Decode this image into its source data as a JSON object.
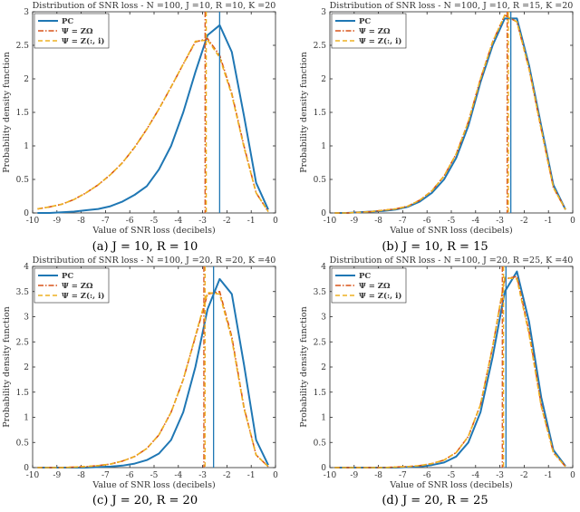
{
  "colors": {
    "pc": "#1f77b4",
    "zomega": "#d95319",
    "zcol": "#edb120"
  },
  "chart_data": [
    {
      "type": "line",
      "title": "Distribution of SNR loss - N =100, J =10, R =10, K =20",
      "caption": "(a) J = 10, R = 10",
      "xlabel": "Value of SNR loss (decibels)",
      "ylabel": "Probability density function",
      "xlim": [
        -10,
        0
      ],
      "ylim": [
        0,
        3
      ],
      "xticks": [
        "-10",
        "-9",
        "-8",
        "-7",
        "-6",
        "-5",
        "-4",
        "-3",
        "-2",
        "-1",
        "0"
      ],
      "yticks": [
        "0",
        "0.5",
        "1",
        "1.5",
        "2",
        "2.5",
        "3"
      ],
      "legend": [
        "PC",
        "Ψ = ZΩ",
        "Ψ = Z(:, i)"
      ],
      "legend_position": "top-left",
      "vlines": [
        -2.3,
        -2.9,
        -2.85
      ],
      "series": [
        {
          "name": "PC",
          "x": [
            -9.8,
            -9.3,
            -8.8,
            -8.3,
            -7.8,
            -7.3,
            -6.8,
            -6.3,
            -5.8,
            -5.3,
            -4.8,
            -4.3,
            -3.8,
            -3.3,
            -2.8,
            -2.3,
            -1.8,
            -1.3,
            -0.8,
            -0.3
          ],
          "y": [
            0.0,
            0.0,
            0.01,
            0.02,
            0.04,
            0.06,
            0.1,
            0.17,
            0.27,
            0.4,
            0.65,
            1.0,
            1.5,
            2.1,
            2.65,
            2.8,
            2.4,
            1.45,
            0.45,
            0.05
          ]
        },
        {
          "name": "Ψ = ZΩ",
          "x": [
            -9.8,
            -9.3,
            -8.8,
            -8.3,
            -7.8,
            -7.3,
            -6.8,
            -6.3,
            -5.8,
            -5.3,
            -4.8,
            -4.3,
            -3.8,
            -3.3,
            -2.8,
            -2.3,
            -1.8,
            -1.3,
            -0.8,
            -0.3
          ],
          "y": [
            0.06,
            0.09,
            0.13,
            0.2,
            0.3,
            0.42,
            0.57,
            0.75,
            0.98,
            1.25,
            1.55,
            1.88,
            2.22,
            2.55,
            2.6,
            2.35,
            1.78,
            1.0,
            0.3,
            0.02
          ]
        },
        {
          "name": "Ψ = Z(:, i)",
          "x": [
            -9.8,
            -9.3,
            -8.8,
            -8.3,
            -7.8,
            -7.3,
            -6.8,
            -6.3,
            -5.8,
            -5.3,
            -4.8,
            -4.3,
            -3.8,
            -3.3,
            -2.8,
            -2.3,
            -1.8,
            -1.3,
            -0.8,
            -0.3
          ],
          "y": [
            0.06,
            0.09,
            0.13,
            0.2,
            0.3,
            0.42,
            0.57,
            0.75,
            0.98,
            1.25,
            1.55,
            1.88,
            2.22,
            2.56,
            2.58,
            2.32,
            1.76,
            0.98,
            0.3,
            0.02
          ]
        }
      ]
    },
    {
      "type": "line",
      "title": "Distribution of SNR loss - N =100, J =10, R =15, K =20",
      "caption": "(b) J = 10, R = 15",
      "xlabel": "Value of SNR loss (decibels)",
      "ylabel": "Probability density function",
      "xlim": [
        -10,
        0
      ],
      "ylim": [
        0,
        3
      ],
      "xticks": [
        "-10",
        "-9",
        "-8",
        "-7",
        "-6",
        "-5",
        "-4",
        "-3",
        "-2",
        "-1",
        "0"
      ],
      "yticks": [
        "0",
        "0.5",
        "1",
        "1.5",
        "2",
        "2.5",
        "3"
      ],
      "legend": [
        "PC",
        "Ψ = ZΩ",
        "Ψ = Z(:, i)"
      ],
      "legend_position": "top-left",
      "vlines": [
        -2.55,
        -2.7,
        -2.65
      ],
      "series": [
        {
          "name": "PC",
          "x": [
            -9.8,
            -9.3,
            -8.8,
            -8.3,
            -7.8,
            -7.3,
            -6.8,
            -6.3,
            -5.8,
            -5.3,
            -4.8,
            -4.3,
            -3.8,
            -3.3,
            -2.8,
            -2.3,
            -1.8,
            -1.3,
            -0.8,
            -0.3
          ],
          "y": [
            0.0,
            0.0,
            0.01,
            0.02,
            0.03,
            0.05,
            0.09,
            0.17,
            0.3,
            0.5,
            0.82,
            1.3,
            1.95,
            2.5,
            2.9,
            2.9,
            2.2,
            1.3,
            0.42,
            0.05
          ]
        },
        {
          "name": "Ψ = ZΩ",
          "x": [
            -9.8,
            -9.3,
            -8.8,
            -8.3,
            -7.8,
            -7.3,
            -6.8,
            -6.3,
            -5.8,
            -5.3,
            -4.8,
            -4.3,
            -3.8,
            -3.3,
            -2.8,
            -2.3,
            -1.8,
            -1.3,
            -0.8,
            -0.3
          ],
          "y": [
            0.0,
            0.0,
            0.01,
            0.02,
            0.04,
            0.06,
            0.1,
            0.19,
            0.33,
            0.55,
            0.88,
            1.36,
            2.0,
            2.55,
            2.95,
            2.85,
            2.15,
            1.25,
            0.38,
            0.05
          ]
        },
        {
          "name": "Ψ = Z(:, i)",
          "x": [
            -9.8,
            -9.3,
            -8.8,
            -8.3,
            -7.8,
            -7.3,
            -6.8,
            -6.3,
            -5.8,
            -5.3,
            -4.8,
            -4.3,
            -3.8,
            -3.3,
            -2.8,
            -2.3,
            -1.8,
            -1.3,
            -0.8,
            -0.3
          ],
          "y": [
            0.0,
            0.0,
            0.01,
            0.02,
            0.04,
            0.06,
            0.1,
            0.19,
            0.33,
            0.55,
            0.88,
            1.36,
            2.0,
            2.55,
            2.95,
            2.85,
            2.15,
            1.25,
            0.38,
            0.05
          ]
        }
      ]
    },
    {
      "type": "line",
      "title": "Distribution of SNR loss - N =100, J =20, R =20, K =40",
      "caption": "(c) J = 20, R = 20",
      "xlabel": "Value of SNR loss (decibels)",
      "ylabel": "Probability density function",
      "xlim": [
        -10,
        0
      ],
      "ylim": [
        0,
        4
      ],
      "xticks": [
        "-10",
        "-9",
        "-8",
        "-7",
        "-6",
        "-5",
        "-4",
        "-3",
        "-2",
        "-1",
        "0"
      ],
      "yticks": [
        "0",
        "0.5",
        "1",
        "1.5",
        "2",
        "2.5",
        "3",
        "3.5",
        "4"
      ],
      "legend": [
        "PC",
        "Ψ = ZΩ",
        "Ψ = Z(:, i)"
      ],
      "legend_position": "top-left",
      "vlines": [
        -2.55,
        -2.95,
        -2.9
      ],
      "series": [
        {
          "name": "PC",
          "x": [
            -9.8,
            -9.3,
            -8.8,
            -8.3,
            -7.8,
            -7.3,
            -6.8,
            -6.3,
            -5.8,
            -5.3,
            -4.8,
            -4.3,
            -3.8,
            -3.3,
            -2.8,
            -2.3,
            -1.8,
            -1.3,
            -0.8,
            -0.3
          ],
          "y": [
            0.0,
            0.0,
            0.0,
            0.0,
            0.0,
            0.01,
            0.02,
            0.04,
            0.08,
            0.15,
            0.28,
            0.55,
            1.1,
            2.0,
            3.15,
            3.75,
            3.45,
            2.05,
            0.55,
            0.05
          ]
        },
        {
          "name": "Ψ = ZΩ",
          "x": [
            -9.8,
            -9.3,
            -8.8,
            -8.3,
            -7.8,
            -7.3,
            -6.8,
            -6.3,
            -5.8,
            -5.3,
            -4.8,
            -4.3,
            -3.8,
            -3.3,
            -2.8,
            -2.3,
            -1.8,
            -1.3,
            -0.8,
            -0.3
          ],
          "y": [
            0.0,
            0.0,
            0.0,
            0.01,
            0.02,
            0.04,
            0.07,
            0.13,
            0.22,
            0.38,
            0.65,
            1.1,
            1.75,
            2.6,
            3.45,
            3.5,
            2.6,
            1.2,
            0.25,
            0.02
          ]
        },
        {
          "name": "Ψ = Z(:, i)",
          "x": [
            -9.8,
            -9.3,
            -8.8,
            -8.3,
            -7.8,
            -7.3,
            -6.8,
            -6.3,
            -5.8,
            -5.3,
            -4.8,
            -4.3,
            -3.8,
            -3.3,
            -2.8,
            -2.3,
            -1.8,
            -1.3,
            -0.8,
            -0.3
          ],
          "y": [
            0.0,
            0.0,
            0.0,
            0.01,
            0.02,
            0.04,
            0.07,
            0.13,
            0.22,
            0.38,
            0.65,
            1.1,
            1.75,
            2.62,
            3.48,
            3.45,
            2.55,
            1.18,
            0.25,
            0.02
          ]
        }
      ]
    },
    {
      "type": "line",
      "title": "Distribution of SNR loss - N =100, J =20, R =25, K =40",
      "caption": "(d) J = 20, R = 25",
      "xlabel": "Value of SNR loss (decibels)",
      "ylabel": "Probability density function",
      "xlim": [
        -10,
        0
      ],
      "ylim": [
        0,
        4
      ],
      "xticks": [
        "-10",
        "-9",
        "-8",
        "-7",
        "-6",
        "-5",
        "-4",
        "-3",
        "-2",
        "-1",
        "0"
      ],
      "yticks": [
        "0",
        "0.5",
        "1",
        "1.5",
        "2",
        "2.5",
        "3",
        "3.5",
        "4"
      ],
      "legend": [
        "PC",
        "Ψ = ZΩ",
        "Ψ = Z(:, i)"
      ],
      "legend_position": "top-left",
      "vlines": [
        -2.75,
        -2.9,
        -2.85
      ],
      "series": [
        {
          "name": "PC",
          "x": [
            -9.8,
            -9.3,
            -8.8,
            -8.3,
            -7.8,
            -7.3,
            -6.8,
            -6.3,
            -5.8,
            -5.3,
            -4.8,
            -4.3,
            -3.8,
            -3.3,
            -2.8,
            -2.3,
            -1.8,
            -1.3,
            -0.8,
            -0.3
          ],
          "y": [
            0.0,
            0.0,
            0.0,
            0.0,
            0.0,
            0.0,
            0.01,
            0.02,
            0.05,
            0.1,
            0.22,
            0.5,
            1.1,
            2.2,
            3.5,
            3.9,
            2.9,
            1.4,
            0.35,
            0.03
          ]
        },
        {
          "name": "Ψ = ZΩ",
          "x": [
            -9.8,
            -9.3,
            -8.8,
            -8.3,
            -7.8,
            -7.3,
            -6.8,
            -6.3,
            -5.8,
            -5.3,
            -4.8,
            -4.3,
            -3.8,
            -3.3,
            -2.8,
            -2.3,
            -1.8,
            -1.3,
            -0.8,
            -0.3
          ],
          "y": [
            0.0,
            0.0,
            0.0,
            0.0,
            0.0,
            0.01,
            0.02,
            0.04,
            0.08,
            0.15,
            0.3,
            0.62,
            1.25,
            2.4,
            3.75,
            3.8,
            2.7,
            1.25,
            0.3,
            0.02
          ]
        },
        {
          "name": "Ψ = Z(:, i)",
          "x": [
            -9.8,
            -9.3,
            -8.8,
            -8.3,
            -7.8,
            -7.3,
            -6.8,
            -6.3,
            -5.8,
            -5.3,
            -4.8,
            -4.3,
            -3.8,
            -3.3,
            -2.8,
            -2.3,
            -1.8,
            -1.3,
            -0.8,
            -0.3
          ],
          "y": [
            0.0,
            0.0,
            0.0,
            0.0,
            0.0,
            0.01,
            0.02,
            0.04,
            0.08,
            0.15,
            0.3,
            0.62,
            1.25,
            2.4,
            3.78,
            3.75,
            2.65,
            1.22,
            0.3,
            0.02
          ]
        }
      ]
    }
  ]
}
